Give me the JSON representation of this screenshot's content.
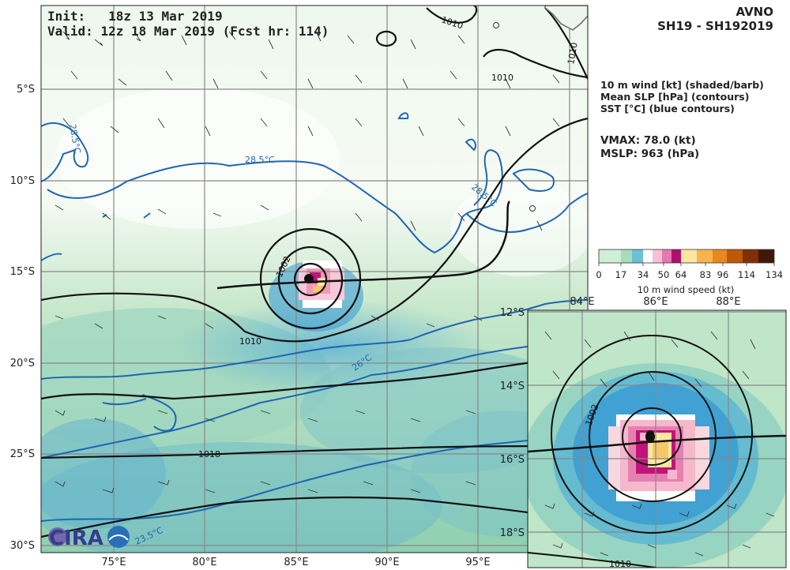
{
  "header": {
    "init_label": "Init:",
    "init_value": "18z 13 Mar 2019",
    "valid_label": "Valid:",
    "valid_value": "12z 18 Mar 2019 (Fcst hr: 114)",
    "model": "AVNO",
    "storm_id": "SH19 - SH192019"
  },
  "fields": [
    "10 m wind [kt] (shaded/barb)",
    "Mean SLP [hPa] (contours)",
    "SST [°C] (blue contours)"
  ],
  "stats": {
    "vmax": "VMAX:  78.0 (kt)",
    "mslp": "MSLP:  963 (hPa)"
  },
  "colorbar": {
    "ticks": [
      "0",
      "17",
      "34",
      "50",
      "64",
      "83",
      "96",
      "114",
      "134"
    ],
    "label": "10 m wind speed (kt)",
    "colors": [
      "#d8f0dc",
      "#aee0c0",
      "#8ccfd6",
      "#ffffff",
      "#f5b0c8",
      "#c0147a",
      "#fde7a0",
      "#f6b04a",
      "#e07a10",
      "#a0400a",
      "#4a1a08"
    ]
  },
  "main_map": {
    "lon_labels": [
      "75°E",
      "80°E",
      "85°E",
      "90°E",
      "95°E"
    ],
    "lat_labels": [
      "5°S",
      "10°S",
      "15°S",
      "20°S",
      "25°S",
      "30°S"
    ],
    "slp_labels": [
      "1010",
      "1010",
      "1010",
      "1002",
      "1010",
      "1018"
    ],
    "sst_labels": [
      "28.5°C",
      "28.5°C",
      "28.5°C",
      "26°C",
      "23.5°C"
    ]
  },
  "inset_map": {
    "lon_labels": [
      "84°E",
      "86°E",
      "88°E"
    ],
    "lat_labels": [
      "12°S",
      "14°S",
      "16°S",
      "18°S"
    ],
    "slp_labels": [
      "1002",
      "1010"
    ]
  },
  "logo": {
    "text": "CIRA"
  }
}
